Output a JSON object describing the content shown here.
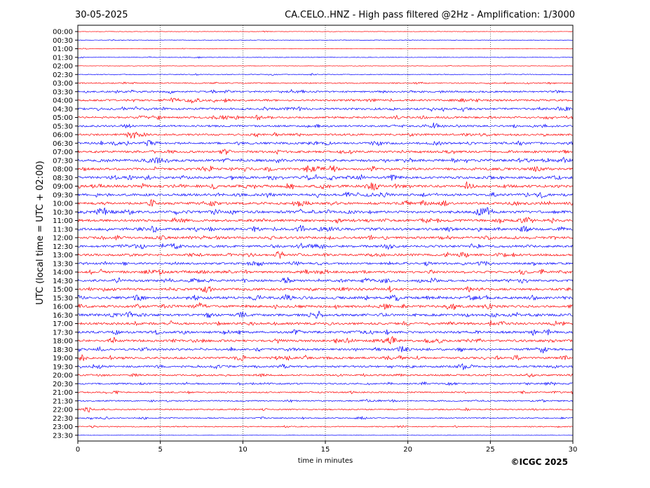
{
  "header": {
    "date": "30-05-2025",
    "title": "CA.CELO..HNZ - High pass filtered @2Hz - Amplification: 1/3000"
  },
  "footer": {
    "copyright": "©ICGC 2025"
  },
  "chart_data": {
    "type": "line",
    "title": "CA.CELO..HNZ - High pass filtered @2Hz - Amplification: 1/3000",
    "xlabel": "time in minutes",
    "ylabel": "UTC (local time = UTC + 02:00)",
    "xlim": [
      0,
      30
    ],
    "x_ticks": [
      "0",
      "5",
      "10",
      "15",
      "20",
      "25",
      "30"
    ],
    "x_tick_values": [
      0,
      5,
      10,
      15,
      20,
      25,
      30
    ],
    "grid": "vertical dotted lines at each x tick",
    "trace_colors": [
      "#ff0000",
      "#0000ff"
    ],
    "rows": [
      "00:00",
      "00:30",
      "01:00",
      "01:30",
      "02:00",
      "02:30",
      "03:00",
      "03:30",
      "04:00",
      "04:30",
      "05:00",
      "05:30",
      "06:00",
      "06:30",
      "07:00",
      "07:30",
      "08:00",
      "08:30",
      "09:00",
      "09:30",
      "10:00",
      "10:30",
      "11:00",
      "11:30",
      "12:00",
      "12:30",
      "13:00",
      "13:30",
      "14:00",
      "14:30",
      "15:00",
      "15:30",
      "16:00",
      "16:30",
      "17:00",
      "17:30",
      "18:00",
      "18:30",
      "19:00",
      "19:30",
      "20:00",
      "20:30",
      "21:00",
      "21:30",
      "22:00",
      "22:30",
      "23:00",
      "23:30"
    ],
    "row_activity": [
      0.05,
      0.08,
      0.07,
      0.12,
      0.05,
      0.2,
      0.35,
      0.6,
      0.75,
      0.8,
      0.7,
      0.7,
      0.75,
      0.85,
      0.8,
      0.95,
      0.9,
      0.95,
      1.0,
      0.9,
      0.95,
      1.0,
      0.95,
      0.95,
      0.9,
      0.85,
      0.85,
      0.8,
      0.85,
      0.85,
      0.9,
      0.95,
      0.95,
      0.95,
      0.9,
      0.9,
      0.85,
      0.8,
      0.8,
      0.75,
      0.6,
      0.55,
      0.45,
      0.45,
      0.4,
      0.35,
      0.3,
      0.0
    ]
  }
}
